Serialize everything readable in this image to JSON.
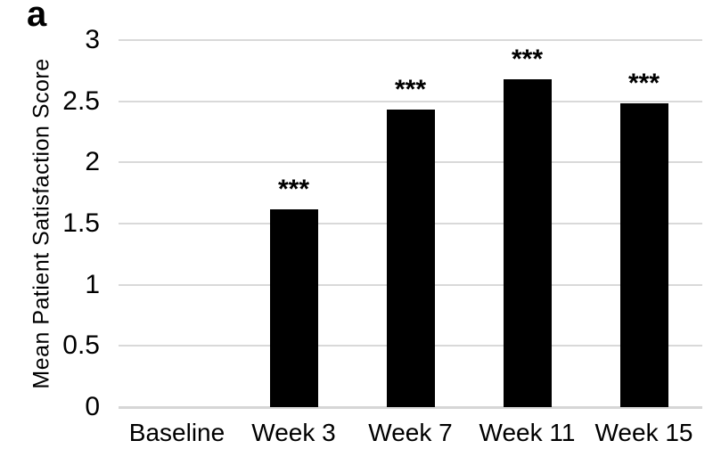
{
  "figure": {
    "panel_label": "a"
  },
  "chart_data": {
    "type": "bar",
    "title": "",
    "xlabel": "",
    "ylabel": "Mean Patient Satisfaction Score",
    "categories": [
      "Baseline",
      "Week 3",
      "Week 7",
      "Week 11",
      "Week 15"
    ],
    "values": [
      0,
      1.62,
      2.43,
      2.68,
      2.48
    ],
    "annotations": [
      "",
      "***",
      "***",
      "***",
      "***"
    ],
    "ylim": [
      0,
      3
    ],
    "yticks": [
      {
        "value": 0,
        "label": "0"
      },
      {
        "value": 0.5,
        "label": "0.5"
      },
      {
        "value": 1,
        "label": "1"
      },
      {
        "value": 1.5,
        "label": "1.5"
      },
      {
        "value": 2,
        "label": "2"
      },
      {
        "value": 2.5,
        "label": "2.5"
      },
      {
        "value": 3,
        "label": "3"
      }
    ],
    "grid": true,
    "legend": false,
    "bar_color": "#000000",
    "gridline_color": "#d9d9d9",
    "axis_line_color": "#d6d6d6",
    "background_color": "#ffffff"
  }
}
